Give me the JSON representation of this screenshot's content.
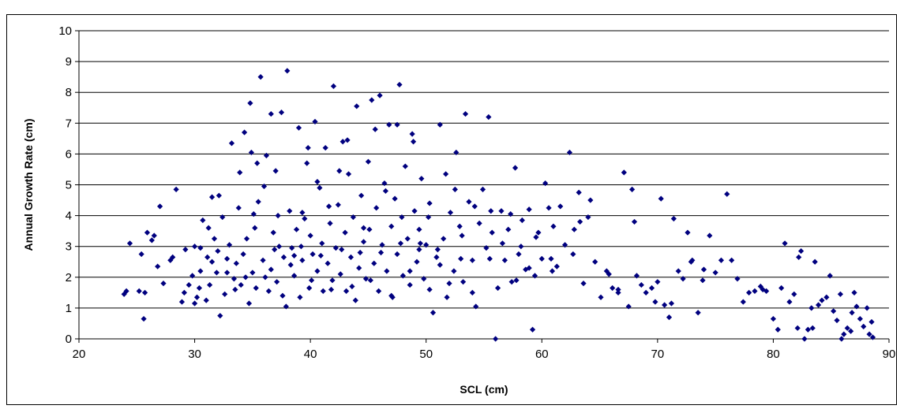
{
  "chart_data": {
    "type": "scatter",
    "title": "",
    "xlabel": "SCL (cm)",
    "ylabel": "Annual Growth Rate (cm)",
    "xlim": [
      20,
      90
    ],
    "ylim": [
      0,
      10
    ],
    "xticks": [
      20,
      30,
      40,
      50,
      60,
      70,
      80,
      90
    ],
    "yticks": [
      0,
      1,
      2,
      3,
      4,
      5,
      6,
      7,
      8,
      9,
      10
    ],
    "grid": "horizontal",
    "legend": "none",
    "marker_color": "#00007f",
    "series": [
      {
        "points": [
          [
            23.9,
            1.45
          ],
          [
            24.1,
            1.55
          ],
          [
            24.4,
            3.1
          ],
          [
            25.2,
            1.55
          ],
          [
            25.4,
            2.75
          ],
          [
            25.6,
            0.65
          ],
          [
            25.7,
            1.5
          ],
          [
            25.9,
            3.45
          ],
          [
            26.3,
            3.2
          ],
          [
            26.5,
            3.35
          ],
          [
            26.8,
            2.35
          ],
          [
            27.0,
            4.3
          ],
          [
            27.3,
            1.8
          ],
          [
            27.9,
            2.55
          ],
          [
            28.1,
            2.65
          ],
          [
            28.4,
            4.85
          ],
          [
            28.9,
            1.2
          ],
          [
            29.1,
            1.5
          ],
          [
            29.2,
            2.9
          ],
          [
            29.5,
            1.75
          ],
          [
            29.8,
            2.05
          ],
          [
            30.0,
            3.0
          ],
          [
            30.0,
            1.15
          ],
          [
            30.2,
            1.35
          ],
          [
            30.4,
            1.65
          ],
          [
            30.5,
            2.95
          ],
          [
            30.7,
            3.85
          ],
          [
            31.0,
            1.25
          ],
          [
            31.1,
            2.65
          ],
          [
            31.3,
            1.75
          ],
          [
            31.5,
            2.5
          ],
          [
            31.7,
            3.25
          ],
          [
            31.9,
            2.15
          ],
          [
            32.0,
            2.85
          ],
          [
            32.2,
            0.75
          ],
          [
            32.4,
            3.95
          ],
          [
            32.6,
            1.45
          ],
          [
            32.8,
            2.15
          ],
          [
            33.0,
            3.05
          ],
          [
            33.2,
            6.35
          ],
          [
            33.4,
            1.95
          ],
          [
            33.6,
            2.45
          ],
          [
            33.8,
            4.25
          ],
          [
            34.0,
            1.75
          ],
          [
            34.2,
            2.75
          ],
          [
            34.3,
            6.7
          ],
          [
            34.5,
            3.25
          ],
          [
            34.7,
            1.15
          ],
          [
            34.8,
            7.65
          ],
          [
            35.0,
            2.15
          ],
          [
            35.1,
            4.05
          ],
          [
            35.3,
            1.65
          ],
          [
            35.5,
            4.45
          ],
          [
            35.7,
            8.5
          ],
          [
            35.9,
            2.55
          ],
          [
            36.0,
            4.95
          ],
          [
            36.2,
            5.95
          ],
          [
            36.4,
            1.55
          ],
          [
            36.6,
            2.25
          ],
          [
            36.8,
            3.45
          ],
          [
            37.0,
            5.45
          ],
          [
            37.1,
            1.85
          ],
          [
            37.3,
            3.0
          ],
          [
            37.5,
            7.35
          ],
          [
            37.7,
            2.65
          ],
          [
            37.9,
            1.05
          ],
          [
            38.0,
            8.7
          ],
          [
            38.2,
            4.15
          ],
          [
            38.4,
            2.95
          ],
          [
            38.6,
            2.05
          ],
          [
            38.8,
            3.55
          ],
          [
            39.0,
            6.85
          ],
          [
            39.1,
            1.35
          ],
          [
            39.3,
            2.55
          ],
          [
            39.5,
            3.9
          ],
          [
            39.7,
            5.7
          ],
          [
            39.9,
            1.65
          ],
          [
            40.0,
            3.35
          ],
          [
            40.2,
            2.75
          ],
          [
            40.4,
            7.05
          ],
          [
            40.6,
            2.2
          ],
          [
            40.8,
            4.9
          ],
          [
            41.0,
            3.1
          ],
          [
            41.1,
            1.55
          ],
          [
            41.3,
            6.2
          ],
          [
            41.5,
            2.45
          ],
          [
            41.7,
            3.75
          ],
          [
            41.9,
            1.9
          ],
          [
            42.0,
            8.2
          ],
          [
            42.2,
            2.95
          ],
          [
            42.4,
            4.35
          ],
          [
            42.6,
            2.1
          ],
          [
            42.8,
            6.4
          ],
          [
            43.0,
            3.45
          ],
          [
            43.1,
            1.55
          ],
          [
            43.3,
            5.35
          ],
          [
            43.5,
            2.65
          ],
          [
            43.7,
            3.95
          ],
          [
            43.9,
            1.25
          ],
          [
            44.0,
            7.55
          ],
          [
            44.2,
            2.3
          ],
          [
            44.4,
            4.65
          ],
          [
            44.6,
            3.15
          ],
          [
            44.8,
            1.95
          ],
          [
            45.0,
            5.75
          ],
          [
            45.1,
            3.55
          ],
          [
            45.3,
            7.75
          ],
          [
            45.5,
            2.45
          ],
          [
            45.7,
            4.25
          ],
          [
            45.9,
            1.55
          ],
          [
            46.0,
            7.9
          ],
          [
            46.2,
            3.05
          ],
          [
            46.4,
            5.05
          ],
          [
            46.6,
            2.2
          ],
          [
            46.8,
            6.95
          ],
          [
            47.0,
            3.65
          ],
          [
            47.1,
            1.35
          ],
          [
            47.3,
            4.55
          ],
          [
            47.5,
            2.75
          ],
          [
            47.7,
            8.25
          ],
          [
            47.9,
            3.95
          ],
          [
            48.0,
            2.05
          ],
          [
            48.2,
            5.6
          ],
          [
            48.4,
            3.25
          ],
          [
            48.6,
            1.75
          ],
          [
            48.8,
            6.65
          ],
          [
            49.0,
            4.15
          ],
          [
            49.2,
            2.5
          ],
          [
            49.4,
            3.55
          ],
          [
            49.6,
            5.2
          ],
          [
            49.8,
            1.95
          ],
          [
            50.0,
            3.05
          ],
          [
            50.3,
            4.4
          ],
          [
            50.6,
            0.85
          ],
          [
            50.9,
            2.65
          ],
          [
            51.2,
            6.95
          ],
          [
            51.5,
            3.25
          ],
          [
            51.8,
            1.35
          ],
          [
            52.1,
            4.1
          ],
          [
            52.4,
            2.2
          ],
          [
            52.6,
            6.05
          ],
          [
            52.9,
            3.65
          ],
          [
            53.2,
            1.85
          ],
          [
            53.4,
            7.3
          ],
          [
            53.7,
            4.45
          ],
          [
            54.0,
            2.55
          ],
          [
            54.3,
            1.05
          ],
          [
            54.6,
            3.75
          ],
          [
            54.9,
            4.85
          ],
          [
            55.2,
            2.95
          ],
          [
            55.4,
            7.2
          ],
          [
            55.7,
            3.45
          ],
          [
            56.0,
            0.0
          ],
          [
            56.2,
            1.65
          ],
          [
            56.5,
            4.15
          ],
          [
            56.8,
            2.55
          ],
          [
            57.1,
            3.55
          ],
          [
            57.4,
            1.85
          ],
          [
            57.7,
            5.55
          ],
          [
            58.0,
            2.75
          ],
          [
            58.3,
            3.85
          ],
          [
            58.6,
            2.25
          ],
          [
            58.9,
            4.2
          ],
          [
            59.2,
            0.3
          ],
          [
            59.4,
            2.05
          ],
          [
            59.7,
            3.45
          ],
          [
            60.0,
            2.6
          ],
          [
            60.3,
            5.05
          ],
          [
            60.6,
            4.25
          ],
          [
            61.0,
            3.65
          ],
          [
            61.3,
            2.35
          ],
          [
            61.6,
            4.3
          ],
          [
            62.0,
            3.05
          ],
          [
            62.4,
            6.05
          ],
          [
            62.8,
            3.55
          ],
          [
            63.2,
            4.75
          ],
          [
            63.6,
            1.8
          ],
          [
            64.0,
            3.95
          ],
          [
            64.6,
            2.5
          ],
          [
            65.1,
            1.35
          ],
          [
            65.6,
            2.2
          ],
          [
            66.1,
            1.65
          ],
          [
            66.6,
            1.5
          ],
          [
            67.1,
            5.4
          ],
          [
            67.5,
            1.05
          ],
          [
            67.8,
            4.85
          ],
          [
            68.2,
            2.05
          ],
          [
            68.6,
            1.75
          ],
          [
            69.0,
            1.5
          ],
          [
            69.5,
            1.65
          ],
          [
            70.0,
            1.85
          ],
          [
            70.3,
            4.55
          ],
          [
            70.6,
            1.1
          ],
          [
            71.0,
            0.7
          ],
          [
            71.4,
            3.9
          ],
          [
            71.8,
            2.2
          ],
          [
            72.2,
            1.95
          ],
          [
            72.6,
            3.45
          ],
          [
            73.0,
            2.55
          ],
          [
            73.5,
            0.85
          ],
          [
            74.0,
            2.25
          ],
          [
            74.5,
            3.35
          ],
          [
            75.0,
            2.15
          ],
          [
            75.5,
            2.55
          ],
          [
            76.0,
            4.7
          ],
          [
            76.4,
            2.55
          ],
          [
            76.9,
            1.95
          ],
          [
            77.4,
            1.2
          ],
          [
            77.9,
            1.5
          ],
          [
            78.4,
            1.55
          ],
          [
            78.9,
            1.7
          ],
          [
            79.4,
            1.55
          ],
          [
            80.0,
            0.65
          ],
          [
            80.4,
            0.3
          ],
          [
            80.7,
            1.65
          ],
          [
            81.0,
            3.1
          ],
          [
            81.4,
            1.2
          ],
          [
            81.8,
            1.45
          ],
          [
            82.1,
            0.35
          ],
          [
            82.4,
            2.85
          ],
          [
            82.7,
            0.0
          ],
          [
            83.0,
            0.3
          ],
          [
            83.3,
            1.0
          ],
          [
            83.6,
            2.5
          ],
          [
            83.9,
            1.1
          ],
          [
            84.2,
            1.25
          ],
          [
            84.6,
            1.35
          ],
          [
            84.9,
            2.05
          ],
          [
            85.2,
            0.9
          ],
          [
            85.5,
            0.6
          ],
          [
            85.8,
            1.45
          ],
          [
            86.1,
            0.15
          ],
          [
            86.4,
            0.35
          ],
          [
            86.7,
            0.25
          ],
          [
            87.0,
            1.5
          ],
          [
            87.2,
            1.05
          ],
          [
            87.5,
            0.65
          ],
          [
            87.8,
            0.4
          ],
          [
            88.1,
            1.0
          ],
          [
            88.3,
            0.15
          ],
          [
            88.5,
            0.55
          ],
          [
            88.6,
            0.05
          ],
          [
            31.5,
            4.6
          ],
          [
            32.1,
            4.65
          ],
          [
            33.9,
            5.4
          ],
          [
            34.9,
            6.05
          ],
          [
            35.4,
            5.7
          ],
          [
            36.6,
            7.3
          ],
          [
            37.2,
            4.0
          ],
          [
            38.6,
            2.7
          ],
          [
            39.3,
            4.1
          ],
          [
            39.8,
            6.2
          ],
          [
            40.6,
            5.1
          ],
          [
            41.6,
            4.3
          ],
          [
            42.5,
            5.45
          ],
          [
            43.2,
            6.45
          ],
          [
            44.6,
            3.6
          ],
          [
            45.6,
            6.8
          ],
          [
            46.5,
            4.8
          ],
          [
            47.5,
            6.95
          ],
          [
            48.9,
            6.4
          ],
          [
            49.5,
            3.1
          ],
          [
            50.2,
            3.95
          ],
          [
            51.0,
            2.9
          ],
          [
            51.7,
            5.35
          ],
          [
            52.5,
            4.85
          ],
          [
            53.1,
            3.35
          ],
          [
            54.2,
            4.3
          ],
          [
            55.6,
            4.15
          ],
          [
            57.3,
            4.05
          ],
          [
            58.2,
            3.0
          ],
          [
            59.5,
            3.3
          ],
          [
            60.9,
            2.2
          ],
          [
            62.7,
            2.75
          ],
          [
            64.2,
            4.5
          ],
          [
            66.6,
            1.6
          ],
          [
            68.0,
            3.8
          ],
          [
            71.2,
            1.15
          ],
          [
            73.9,
            1.9
          ],
          [
            82.2,
            2.65
          ],
          [
            83.4,
            0.35
          ],
          [
            85.9,
            0.0
          ],
          [
            86.8,
            0.85
          ],
          [
            30.5,
            2.2
          ],
          [
            31.2,
            3.6
          ],
          [
            32.8,
            2.6
          ],
          [
            33.5,
            1.6
          ],
          [
            34.4,
            2.0
          ],
          [
            35.2,
            3.6
          ],
          [
            36.1,
            2.0
          ],
          [
            36.9,
            2.9
          ],
          [
            37.6,
            1.4
          ],
          [
            38.3,
            2.4
          ],
          [
            39.2,
            3.0
          ],
          [
            40.1,
            1.9
          ],
          [
            40.9,
            2.7
          ],
          [
            41.8,
            1.6
          ],
          [
            42.7,
            2.9
          ],
          [
            43.6,
            1.7
          ],
          [
            44.3,
            2.8
          ],
          [
            45.2,
            1.9
          ],
          [
            46.1,
            2.8
          ],
          [
            47.0,
            1.4
          ],
          [
            47.8,
            3.1
          ],
          [
            48.6,
            2.2
          ],
          [
            49.4,
            2.9
          ],
          [
            50.3,
            1.6
          ],
          [
            51.2,
            2.4
          ],
          [
            52.0,
            1.8
          ],
          [
            53.0,
            2.6
          ],
          [
            54.0,
            1.5
          ],
          [
            55.5,
            2.6
          ],
          [
            56.6,
            3.1
          ],
          [
            57.8,
            1.9
          ],
          [
            58.9,
            2.3
          ],
          [
            60.8,
            2.6
          ],
          [
            63.3,
            3.8
          ],
          [
            65.8,
            2.1
          ],
          [
            69.8,
            1.2
          ],
          [
            72.9,
            2.5
          ],
          [
            79.1,
            1.6
          ]
        ]
      }
    ]
  }
}
